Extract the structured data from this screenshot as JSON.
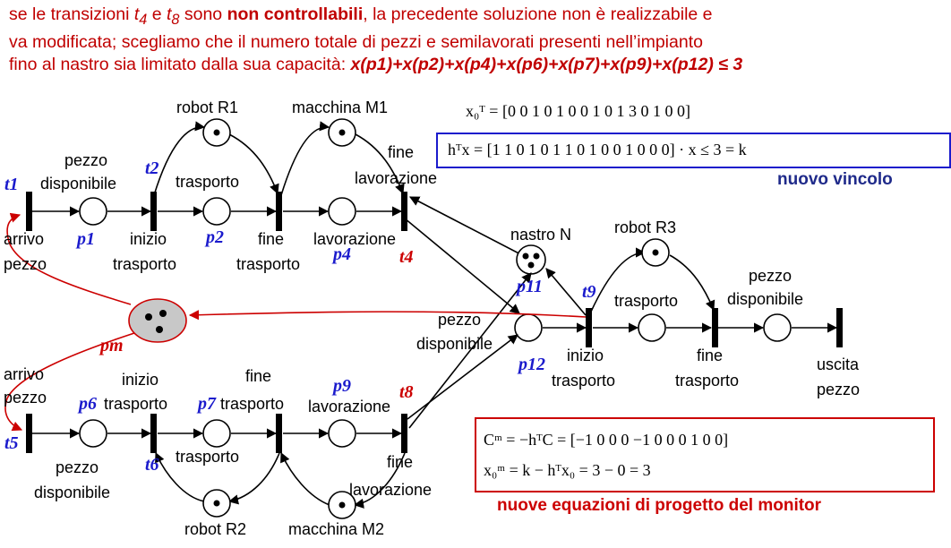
{
  "header": {
    "line1_a": "se le transizioni ",
    "t4": "t",
    "t4_sub": "4",
    "line1_b": " e ",
    "t8": "t",
    "t8_sub": "8",
    "line1_c": " sono ",
    "line1_bold": "non controllabili",
    "line1_d": ", la precedente soluzione non è realizzabile e",
    "line2": "va modificata; scegliamo che il numero totale di pezzi e semilavorati presenti nell’impianto",
    "line3": "fino al nastro sia limitato dalla sua capacità: ",
    "constraint": "x(p1)+x(p2)+x(p4)+x(p6)+x(p7)+x(p9)+x(p12) ≤ 3"
  },
  "equations": {
    "x0": "x₀ᵀ = [0 0 1 0 1 0 0 1 0 1 3 0 1 0 0]",
    "hx": "hᵀx = [1 1 0 1 0 1 1 0 1 0 0 1 0 0 0] · x ≤ 3 = k",
    "nuovo_vincolo": "nuovo vincolo",
    "cm": "Cᵐ = −hᵀC = [−1 0 0 0 −1 0 0 0 1 0 0]",
    "xm0": "x₀ᵐ = k − hᵀx₀ = 3 − 0 = 3",
    "monitor_title": "nuove equazioni di progetto del monitor"
  },
  "labels": {
    "robot_r1": "robot R1",
    "macchina_m1": "macchina M1",
    "fine_lav_top_1": "fine",
    "fine_lav_top_2": "lavorazione",
    "pezzo_disp_top_1": "pezzo",
    "pezzo_disp_top_2": "disponibile",
    "trasporto_top": "trasporto",
    "arrivo_top_1": "arrivo",
    "arrivo_top_2": "pezzo",
    "inizio_tr_top_1": "inizio",
    "inizio_tr_top_2": "trasporto",
    "fine_tr_top_1": "fine",
    "fine_tr_top_2": "trasporto",
    "lavorazione_top": "lavorazione",
    "nastro_n": "nastro N",
    "robot_r3": "robot R3",
    "pezzo_disp_r_1": "pezzo",
    "pezzo_disp_r_2": "disponibile",
    "trasporto_r": "trasporto",
    "pezzo_disp_mid_1": "pezzo",
    "pezzo_disp_mid_2": "disponibile",
    "inizio_tr_r_1": "inizio",
    "inizio_tr_r_2": "trasporto",
    "fine_tr_r_1": "fine",
    "fine_tr_r_2": "trasporto",
    "uscita_1": "uscita",
    "uscita_2": "pezzo",
    "arrivo_bot_1": "arrivo",
    "arrivo_bot_2": "pezzo",
    "inizio_tr_bot_1": "inizio",
    "inizio_tr_bot_2": "trasporto",
    "fine_tr_bot_1": "fine",
    "fine_tr_bot_2": "trasporto",
    "lavorazione_bot": "lavorazione",
    "pezzo_disp_bot_1": "pezzo",
    "pezzo_disp_bot_2": "disponibile",
    "trasporto_bot": "trasporto",
    "fine_lav_bot_1": "fine",
    "fine_lav_bot_2": "lavorazione",
    "robot_r2": "robot R2",
    "macchina_m2": "macchina M2"
  },
  "ids": {
    "t1": "t1",
    "t2": "t2",
    "t4": "t4",
    "t5": "t5",
    "t6": "t6",
    "t8": "t8",
    "t9": "t9",
    "p1": "p1",
    "p2": "p2",
    "p4": "p4",
    "p6": "p6",
    "p7": "p7",
    "p9": "p9",
    "p11": "p11",
    "p12": "p12",
    "pm": "pm"
  },
  "colors": {
    "accent_red": "#cc0000",
    "id_blue": "#1a1acc",
    "monitor_fill": "#c8c8c8",
    "nuovo_vincolo": "#1f2a8a"
  }
}
